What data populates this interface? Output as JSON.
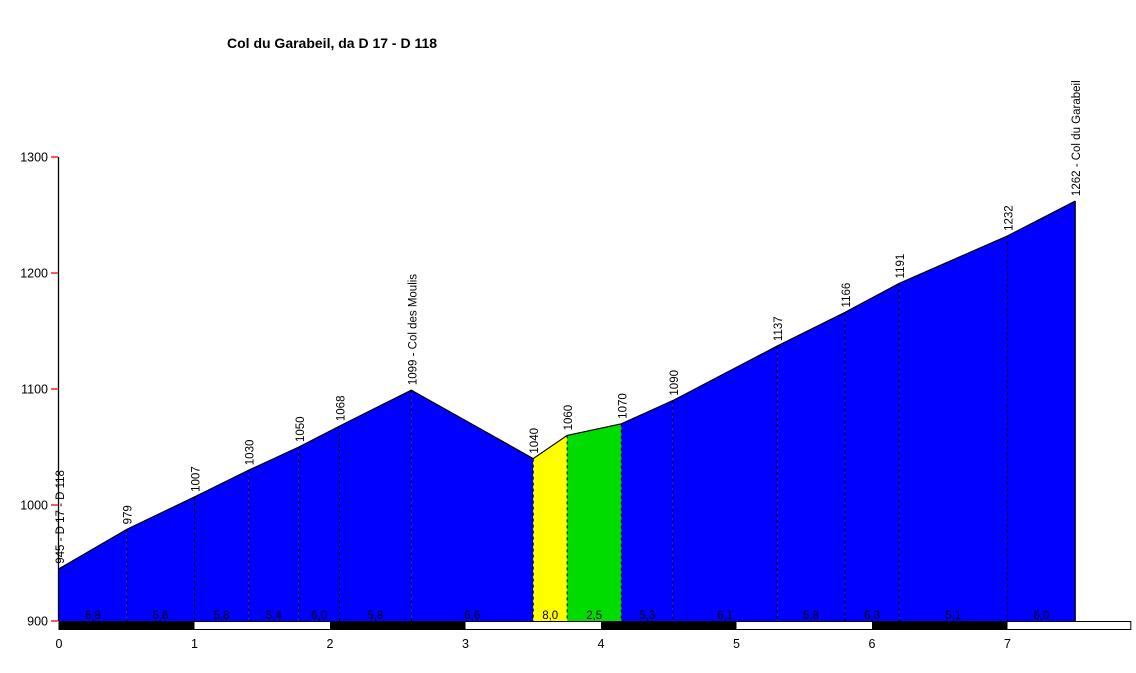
{
  "chart_data": {
    "type": "area",
    "title": "Col du Garabeil, da D 17 - D 118",
    "xlabel": "",
    "ylabel": "",
    "x_unit": "km",
    "y_unit": "m",
    "ylim": [
      900,
      1300
    ],
    "xlim": [
      0,
      7.91
    ],
    "y_ticks": [
      900,
      1000,
      1100,
      1200,
      1300
    ],
    "x_ticks": [
      0,
      1,
      2,
      3,
      4,
      5,
      6,
      7
    ],
    "grid": "dashed vertical dividers at profile points only",
    "legend": "none",
    "points": [
      {
        "km": 0.0,
        "elev": 945,
        "label": "945 - D 17 - D 118"
      },
      {
        "km": 0.5,
        "elev": 979,
        "label": "979"
      },
      {
        "km": 1.0,
        "elev": 1007,
        "label": "1007"
      },
      {
        "km": 1.4,
        "elev": 1030,
        "label": "1030"
      },
      {
        "km": 1.77,
        "elev": 1050,
        "label": "1050"
      },
      {
        "km": 2.07,
        "elev": 1068,
        "label": "1068"
      },
      {
        "km": 2.6,
        "elev": 1099,
        "label": "1099 - Col des Moulis"
      },
      {
        "km": 3.5,
        "elev": 1040,
        "label": "1040"
      },
      {
        "km": 3.75,
        "elev": 1060,
        "label": "1060"
      },
      {
        "km": 4.15,
        "elev": 1070,
        "label": "1070"
      },
      {
        "km": 4.53,
        "elev": 1090,
        "label": "1090"
      },
      {
        "km": 5.3,
        "elev": 1137,
        "label": "1137"
      },
      {
        "km": 5.8,
        "elev": 1166,
        "label": "1166"
      },
      {
        "km": 6.2,
        "elev": 1191,
        "label": "1191"
      },
      {
        "km": 7.0,
        "elev": 1232,
        "label": "1232"
      },
      {
        "km": 7.5,
        "elev": 1262,
        "label": "1262 - Col du Garabeil"
      }
    ],
    "segments": [
      {
        "gradient_label": "6,8",
        "color": "#0000FF"
      },
      {
        "gradient_label": "5,6",
        "color": "#0000FF"
      },
      {
        "gradient_label": "5,8",
        "color": "#0000FF"
      },
      {
        "gradient_label": "5,4",
        "color": "#0000FF"
      },
      {
        "gradient_label": "6,0",
        "color": "#0000FF"
      },
      {
        "gradient_label": "5,8",
        "color": "#0000FF"
      },
      {
        "gradient_label": "6,6",
        "color": "#0000FF"
      },
      {
        "gradient_label": "8,0",
        "color": "#FFFF00"
      },
      {
        "gradient_label": "2,5",
        "color": "#00DC00"
      },
      {
        "gradient_label": "5,3",
        "color": "#0000FF"
      },
      {
        "gradient_label": "6,1",
        "color": "#0000FF"
      },
      {
        "gradient_label": "5,8",
        "color": "#0000FF"
      },
      {
        "gradient_label": "6,3",
        "color": "#0000FF"
      },
      {
        "gradient_label": "5,1",
        "color": "#0000FF"
      },
      {
        "gradient_label": "6,0",
        "color": "#0000FF"
      }
    ],
    "km_bar": {
      "dark_intervals_km": [
        [
          0,
          1
        ],
        [
          2,
          3
        ],
        [
          4,
          5
        ],
        [
          6,
          7
        ]
      ],
      "end_km": 7.91
    },
    "colors": {
      "fill_default": "#0000FF",
      "fill_steep": "#FFFF00",
      "fill_easy": "#00DC00",
      "outline": "#000000",
      "axis": "#000000",
      "y_tick": "#FF0000",
      "text": "#000000",
      "background": "#FFFFFF"
    }
  }
}
